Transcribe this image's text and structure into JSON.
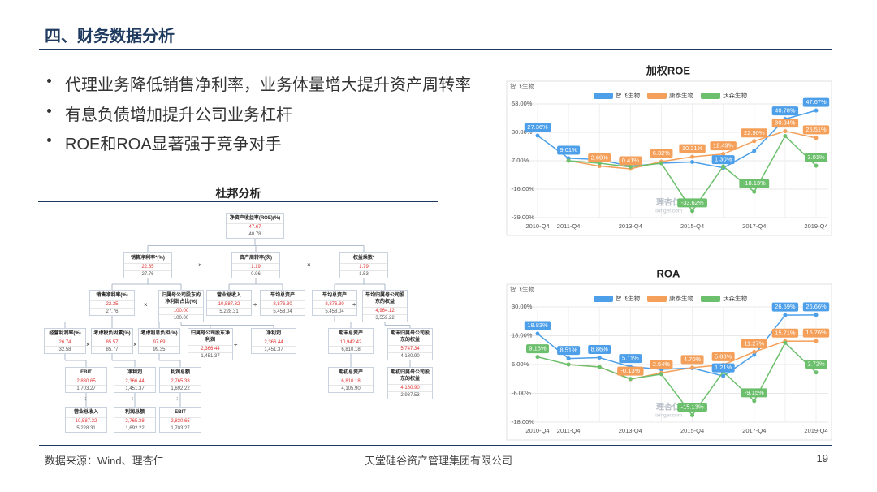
{
  "header": {
    "title": "四、财务数据分析"
  },
  "bullets": [
    "代理业务降低销售净利率，业务体量增大提升资产周转率",
    "有息负债增加提升公司业务杠杆",
    "ROE和ROA显著强于竞争对手"
  ],
  "dupont": {
    "title": "杜邦分析",
    "nodes": [
      {
        "label": "净资产收益率(ROE)(%)",
        "current": "47.67",
        "previous": "40.78"
      },
      {
        "label": "销售净利率*(%)",
        "current": "22.35",
        "previous": "27.76"
      },
      {
        "label": "资产周转率(次)",
        "current": "1.19",
        "previous": "0.96"
      },
      {
        "label": "权益乘数*",
        "current": "1.79",
        "previous": "1.53"
      },
      {
        "label": "销售净利率(%)",
        "current": "22.35",
        "previous": "27.76"
      },
      {
        "label": "归属母公司股东的净利润占比(%)",
        "current": "100.00",
        "previous": "100.00"
      },
      {
        "label": "营业总收入",
        "current": "10,587.32",
        "previous": "5,228.31"
      },
      {
        "label": "平均总资产",
        "current": "8,876.30",
        "previous": "5,458.04"
      },
      {
        "label": "平均总资产",
        "current": "8,876.30",
        "previous": "5,458.04"
      },
      {
        "label": "平均归属母公司股东的权益",
        "current": "4,964.12",
        "previous": "3,559.22"
      },
      {
        "label": "经营利润率(%)",
        "current": "26.74",
        "previous": "32.58"
      },
      {
        "label": "考虑税负因素(%)",
        "current": "85.57",
        "previous": "85.77"
      },
      {
        "label": "考虑利息负担(%)",
        "current": "97.69",
        "previous": "99.35"
      },
      {
        "label": "归属母公司股东净利润",
        "current": "2,366.44",
        "previous": "1,451.37"
      },
      {
        "label": "净利润",
        "current": "2,366.44",
        "previous": "1,451.37"
      },
      {
        "label": "期末总资产",
        "current": "10,942.42",
        "previous": "6,810.18"
      },
      {
        "label": "期末归属母公司股东的权益",
        "current": "5,747.34",
        "previous": "4,180.90"
      },
      {
        "label": "EBIT",
        "current": "2,830.65",
        "previous": "1,703.27"
      },
      {
        "label": "净利润",
        "current": "2,366.44",
        "previous": "1,451.37"
      },
      {
        "label": "利润总额",
        "current": "2,765.38",
        "previous": "1,692.22"
      },
      {
        "label": "期初总资产",
        "current": "6,810.18",
        "previous": "4,105.90"
      },
      {
        "label": "期初归属母公司股东的权益",
        "current": "4,180.90",
        "previous": "2,937.53"
      },
      {
        "label": "营业总收入",
        "current": "10,587.32",
        "previous": "5,228.31"
      },
      {
        "label": "利润总额",
        "current": "2,765.38",
        "previous": "1,692.22"
      },
      {
        "label": "EBIT",
        "current": "2,830.65",
        "previous": "1,703.27"
      }
    ],
    "operators": [
      "×",
      "×",
      "×",
      "÷",
      "÷",
      "×",
      "×",
      "÷",
      "÷",
      "÷",
      "÷"
    ]
  },
  "chart_data": [
    {
      "type": "line",
      "title": "加权ROE",
      "subtitle": "智飞生物",
      "logo": "理杏仁",
      "logo_url": "lixinger.com",
      "categories": [
        "2010-Q4",
        "2011-Q4",
        null,
        "2013-Q4",
        null,
        "2015-Q4",
        null,
        "2017-Q4",
        null,
        "2019-Q4"
      ],
      "ylim": [
        -39,
        53
      ],
      "yticks": [
        {
          "value": -39,
          "label": "-39.00%"
        },
        {
          "value": -16,
          "label": "-16.00%"
        },
        {
          "value": 7,
          "label": "7.00%"
        },
        {
          "value": 30,
          "label": "30.00%"
        },
        {
          "value": 53,
          "label": "53.00%"
        }
      ],
      "grid": true,
      "legend": "top",
      "series": [
        {
          "name": "智飞生物",
          "color": "#4c9fe8",
          "values": [
            27.36,
            9.01,
            8,
            2.5,
            5,
            6,
            1.3,
            15,
            40.78,
            47.67
          ],
          "value_labels": [
            "27.36%",
            "9.01%",
            null,
            null,
            null,
            null,
            "1.30%",
            null,
            "40.78%",
            "47.67%"
          ]
        },
        {
          "name": "康泰生物",
          "color": "#f5a05a",
          "values": [
            null,
            7,
            2.69,
            0.41,
            6.32,
            10.21,
            12.49,
            22.9,
            30.94,
            25.51
          ],
          "value_labels": [
            null,
            null,
            "2.69%",
            "0.41%",
            "6.32%",
            "10.21%",
            "12.49%",
            "22.90%",
            "30.94%",
            "25.51%"
          ]
        },
        {
          "name": "沃森生物",
          "color": "#6cbf6c",
          "values": [
            null,
            7,
            5,
            2,
            5,
            -33.62,
            2.4,
            -18.13,
            27,
            3.01
          ],
          "value_labels": [
            null,
            null,
            null,
            null,
            null,
            "-33.62%",
            null,
            "-18.13%",
            null,
            "3.01%"
          ]
        }
      ]
    },
    {
      "type": "line",
      "title": "ROA",
      "subtitle": "智飞生物",
      "logo": "理杏仁",
      "logo_url": "lixinger.com",
      "categories": [
        "2010-Q4",
        "2011-Q4",
        null,
        "2013-Q4",
        null,
        "2015-Q4",
        null,
        "2017-Q4",
        null,
        "2019-Q4"
      ],
      "ylim": [
        -18,
        30
      ],
      "yticks": [
        {
          "value": -18,
          "label": "-18.00%"
        },
        {
          "value": -6,
          "label": "-6.00%"
        },
        {
          "value": 6,
          "label": "6.00%"
        },
        {
          "value": 18,
          "label": "18.00%"
        },
        {
          "value": 30,
          "label": "30.00%"
        }
      ],
      "grid": true,
      "legend": "top",
      "series": [
        {
          "name": "智飞生物",
          "color": "#4c9fe8",
          "values": [
            18.83,
            8.51,
            8.86,
            5.11,
            4,
            4.5,
            1.21,
            10,
            26.59,
            26.66
          ],
          "value_labels": [
            "18.83%",
            "8.51%",
            "8.86%",
            "5.11%",
            null,
            null,
            "1.21%",
            null,
            "26.59%",
            "26.66%"
          ]
        },
        {
          "name": "康泰生物",
          "color": "#f5a05a",
          "values": [
            null,
            6,
            5,
            -0.13,
            2.54,
            4.7,
            5.88,
            11.27,
            15.71,
            15.76
          ],
          "value_labels": [
            null,
            null,
            null,
            "-0.13%",
            "2.54%",
            "4.70%",
            "5.88%",
            "11.27%",
            "15.71%",
            "15.76%"
          ]
        },
        {
          "name": "沃森生物",
          "color": "#6cbf6c",
          "values": [
            9.16,
            6,
            5,
            0,
            2,
            -15.13,
            3,
            -9.15,
            15,
            2.72
          ],
          "value_labels": [
            "9.16%",
            null,
            null,
            null,
            null,
            "-15.13%",
            null,
            "-9.15%",
            null,
            "2.72%"
          ]
        }
      ]
    }
  ],
  "footer": {
    "source": "数据来源：Wind、理杏仁",
    "company": "天堂硅谷资产管理集团有限公司",
    "page": "19"
  }
}
